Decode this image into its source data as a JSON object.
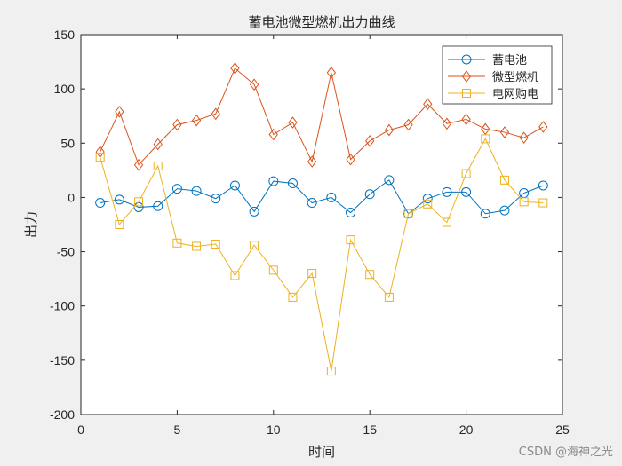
{
  "chart_data": {
    "type": "line",
    "title": "蓄电池微型燃机出力曲线",
    "xlabel": "时间",
    "ylabel": "出力",
    "xlim": [
      0,
      25
    ],
    "ylim": [
      -200,
      150
    ],
    "x_ticks": [
      0,
      5,
      10,
      15,
      20,
      25
    ],
    "y_ticks": [
      150,
      100,
      50,
      0,
      -50,
      -100,
      -150,
      -200
    ],
    "grid": false,
    "legend_position": "top-right",
    "x": [
      1,
      2,
      3,
      4,
      5,
      6,
      7,
      8,
      9,
      10,
      11,
      12,
      13,
      14,
      15,
      16,
      17,
      18,
      19,
      20,
      21,
      22,
      23,
      24
    ],
    "series": [
      {
        "name": "蓄电池",
        "color": "#0072BD",
        "marker": "circle",
        "values": [
          -5,
          -2,
          -9,
          -8,
          8,
          6,
          -1,
          11,
          -13,
          15,
          13,
          -5,
          0,
          -14,
          3,
          16,
          -15,
          -1,
          5,
          5,
          -15,
          -12,
          4,
          11
        ]
      },
      {
        "name": "微型燃机",
        "color": "#D95319",
        "marker": "diamond",
        "values": [
          42,
          79,
          30,
          49,
          67,
          71,
          77,
          119,
          104,
          58,
          69,
          33,
          115,
          35,
          52,
          62,
          67,
          86,
          68,
          72,
          63,
          60,
          55,
          65
        ]
      },
      {
        "name": "电网购电",
        "color": "#EDB120",
        "marker": "square",
        "values": [
          37,
          -25,
          -4,
          29,
          -42,
          -45,
          -43,
          -72,
          -44,
          -67,
          -92,
          -70,
          -160,
          -39,
          -71,
          -92,
          -15,
          -6,
          -23,
          22,
          54,
          16,
          -4,
          -5
        ]
      }
    ]
  },
  "watermark": "CSDN @海神之光"
}
